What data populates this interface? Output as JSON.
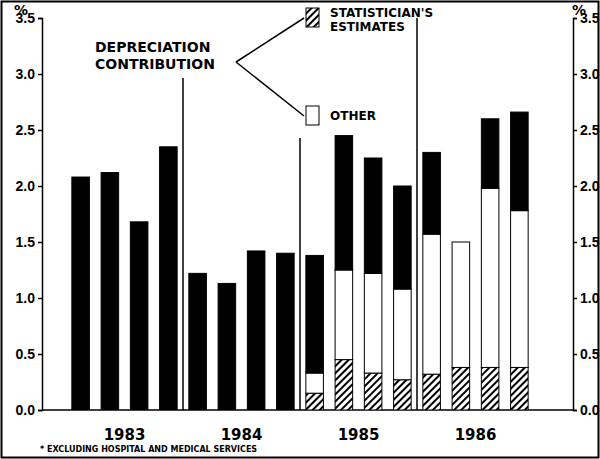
{
  "chart_data": {
    "type": "bar",
    "stacked": true,
    "y_label": "%",
    "annotation": "DEPRECIATION\nCONTRIBUTION",
    "footnote": "* EXCLUDING HOSPITAL AND MEDICAL SERVICES",
    "categories": [
      null,
      null,
      null,
      null,
      null,
      null,
      null,
      null,
      null,
      null,
      null,
      null,
      null,
      null,
      null,
      null
    ],
    "groups": [
      {
        "label": "1983",
        "size": 4
      },
      {
        "label": "1984",
        "size": 4
      },
      {
        "label": "1985",
        "size": 4
      },
      {
        "label": "1986",
        "size": 4
      }
    ],
    "series": [
      {
        "name": "STATISTICIAN'S\nESTIMATES",
        "color": "#000000",
        "values": [
          null,
          null,
          null,
          null,
          null,
          null,
          null,
          null,
          0.15,
          0.45,
          0.33,
          0.27,
          0.32,
          0.38,
          0.38,
          0.38
        ]
      },
      {
        "name": "OTHER",
        "color": "#ffffff",
        "values": [
          null,
          null,
          null,
          null,
          null,
          null,
          null,
          null,
          0.18,
          0.8,
          0.89,
          0.81,
          1.25,
          1.12,
          1.6,
          1.4
        ]
      },
      {
        "color": "#000000",
        "values": [
          2.08,
          2.12,
          1.68,
          2.35,
          1.22,
          1.13,
          1.42,
          1.4,
          1.05,
          1.2,
          1.03,
          0.92,
          0.73,
          0,
          0.62,
          0.88
        ]
      }
    ],
    "ylim": [
      0,
      3.5
    ],
    "yticks": [
      {
        "value": 0,
        "label": "0.0"
      },
      0.5,
      {
        "value": 1,
        "label": "1.0"
      },
      1.5,
      {
        "value": 2,
        "label": "2.0"
      },
      2.5,
      {
        "value": 3,
        "label": "3.0"
      },
      3.5
    ],
    "grid": false,
    "legend": "top"
  }
}
